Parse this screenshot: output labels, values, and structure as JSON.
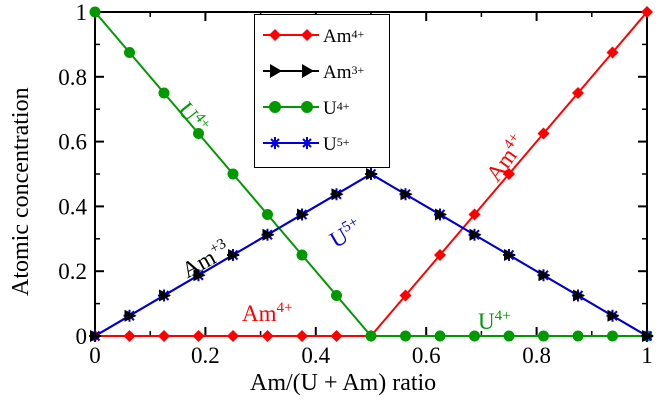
{
  "chart_data": {
    "type": "line",
    "xlabel": "Am/(U + Am) ratio",
    "ylabel": "Atomic concentration",
    "xlim": [
      0,
      1
    ],
    "ylim": [
      0,
      1
    ],
    "x_ticks": [
      "0",
      "0.2",
      "0.4",
      "0.6",
      "0.8",
      "1"
    ],
    "y_ticks": [
      "0",
      "0.2",
      "0.4",
      "0.6",
      "0.8",
      "1"
    ],
    "grid": false,
    "legend_position": "top-center",
    "x": [
      0,
      0.0625,
      0.125,
      0.1875,
      0.25,
      0.3125,
      0.375,
      0.4375,
      0.5,
      0.5625,
      0.625,
      0.6875,
      0.75,
      0.8125,
      0.875,
      0.9375,
      1
    ],
    "series": [
      {
        "name": "Am4+",
        "name_base": "Am",
        "name_sup": "4+",
        "color": "#ff0000",
        "marker": "diamond",
        "values": [
          0,
          0,
          0,
          0,
          0,
          0,
          0,
          0,
          0,
          0.125,
          0.25,
          0.375,
          0.5,
          0.625,
          0.75,
          0.875,
          1
        ]
      },
      {
        "name": "Am3+",
        "name_base": "Am",
        "name_sup": "3+",
        "color": "#000000",
        "marker": "triangle-right",
        "values": [
          0,
          0.0625,
          0.125,
          0.1875,
          0.25,
          0.3125,
          0.375,
          0.4375,
          0.5,
          0.4375,
          0.375,
          0.3125,
          0.25,
          0.1875,
          0.125,
          0.0625,
          0
        ]
      },
      {
        "name": "U4+",
        "name_base": "U",
        "name_sup": "4+",
        "color": "#009900",
        "marker": "circle",
        "values": [
          1,
          0.875,
          0.75,
          0.625,
          0.5,
          0.375,
          0.25,
          0.125,
          0,
          0,
          0,
          0,
          0,
          0,
          0,
          0,
          0
        ]
      },
      {
        "name": "U5+",
        "name_base": "U",
        "name_sup": "5+",
        "color": "#0000dd",
        "marker": "star",
        "values": [
          0,
          0.0625,
          0.125,
          0.1875,
          0.25,
          0.3125,
          0.375,
          0.4375,
          0.5,
          0.4375,
          0.375,
          0.3125,
          0.25,
          0.1875,
          0.125,
          0.0625,
          0
        ]
      }
    ],
    "annotations": [
      {
        "base": "U",
        "sup": "4+",
        "color": "#009900"
      },
      {
        "base": "Am",
        "sup": "+3",
        "color": "#000000"
      },
      {
        "base": "U",
        "sup": "5+",
        "color": "#0000dd"
      },
      {
        "base": "Am",
        "sup": "4+",
        "color": "#ff0000"
      },
      {
        "base": "Am",
        "sup": "4+",
        "color": "#ff0000"
      },
      {
        "base": "U",
        "sup": "4+",
        "color": "#009900"
      }
    ]
  }
}
